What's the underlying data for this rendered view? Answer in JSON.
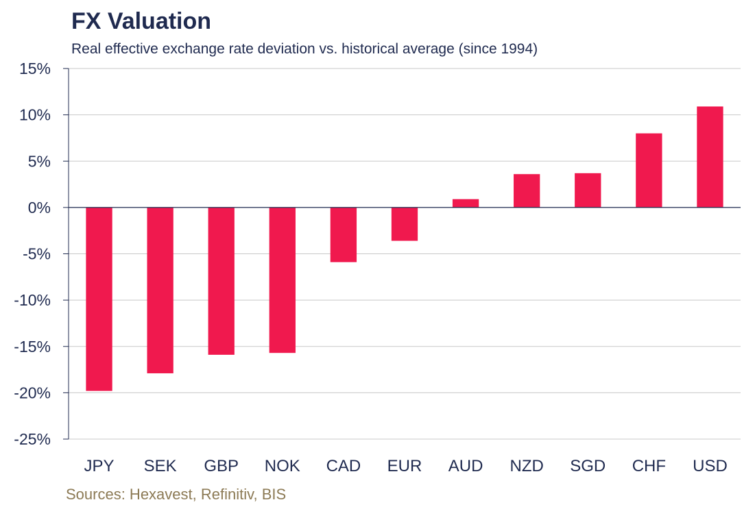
{
  "chart_data": {
    "type": "bar",
    "title": "FX Valuation",
    "subtitle": "Real effective exchange rate deviation vs. historical average (since 1994)",
    "categories": [
      "JPY",
      "SEK",
      "GBP",
      "NOK",
      "CAD",
      "EUR",
      "AUD",
      "NZD",
      "SGD",
      "CHF",
      "USD"
    ],
    "values": [
      -19.8,
      -17.9,
      -15.9,
      -15.7,
      -5.9,
      -3.6,
      0.9,
      3.6,
      3.7,
      8.0,
      10.9
    ],
    "ylim": [
      -25,
      15
    ],
    "yticks": [
      15,
      10,
      5,
      0,
      -5,
      -10,
      -15,
      -20,
      -25
    ],
    "ytick_labels": [
      "15%",
      "10%",
      "5%",
      "0%",
      "-5%",
      "-10%",
      "-15%",
      "-20%",
      "-25%"
    ],
    "xlabel": "",
    "ylabel": "",
    "grid": true,
    "legend": "none",
    "bar_color": "#f0194e",
    "axis_color": "#1f2a4f",
    "grid_color": "#c8c8c8"
  },
  "source": "Sources: Hexavest, Refinitiv, BIS"
}
